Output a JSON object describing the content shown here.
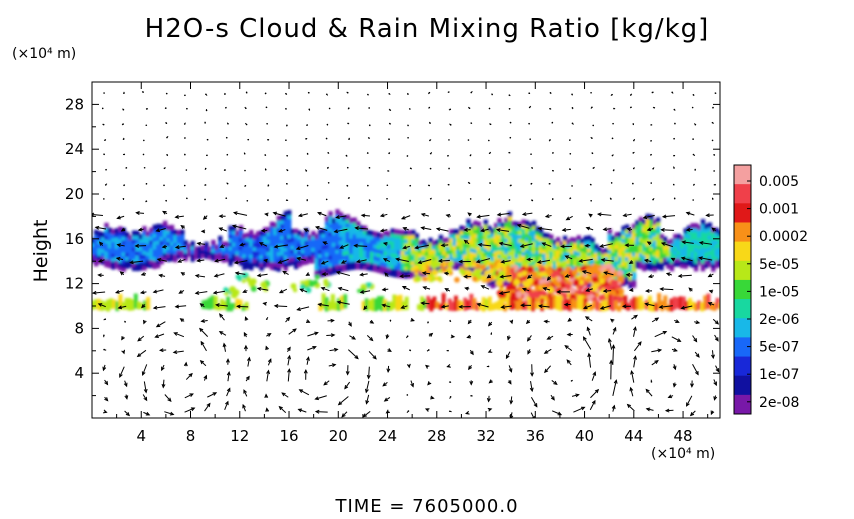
{
  "chart_data": {
    "type": "heatmap",
    "title": "H2O-s Cloud & Rain Mixing Ratio [kg/kg]",
    "ylabel": "Height",
    "y_unit": "(×10⁴ m)",
    "x_unit": "(×10⁴ m)",
    "footer": "TIME = 7605000.0",
    "xlim": [
      0,
      51
    ],
    "ylim": [
      0,
      30
    ],
    "x_ticks": [
      "4",
      "8",
      "12",
      "16",
      "20",
      "24",
      "28",
      "32",
      "36",
      "40",
      "44",
      "48"
    ],
    "y_ticks": [
      "4",
      "8",
      "12",
      "16",
      "20",
      "24",
      "28"
    ],
    "colorbar": {
      "labels": [
        "0.005",
        "0.001",
        "0.0002",
        "5e-05",
        "1e-05",
        "2e-06",
        "5e-07",
        "1e-07",
        "2e-08"
      ],
      "colors": [
        "#f4a0a0",
        "#f0404a",
        "#e01818",
        "#f89018",
        "#f8d818",
        "#b8e818",
        "#38d838",
        "#18d8a0",
        "#18b8e8",
        "#1868f8",
        "#1828d8",
        "#1010a0",
        "#7818a8"
      ]
    },
    "features": {
      "upper_cloud_layer": {
        "x_range": [
          0,
          51
        ],
        "height_range": [
          13,
          18.5
        ],
        "mixing_ratio_range": [
          "2e-08",
          "0.005"
        ]
      },
      "lower_rain_layer": {
        "x_range": [
          0,
          51
        ],
        "height_range": [
          9.5,
          11
        ],
        "mixing_ratio_range": [
          "1e-05",
          "0.005"
        ]
      },
      "peak_region": {
        "x_range": [
          33,
          43
        ],
        "height_range": [
          10.5,
          13.5
        ],
        "mixing_ratio": "0.005"
      }
    },
    "wind_vectors": "shown"
  }
}
